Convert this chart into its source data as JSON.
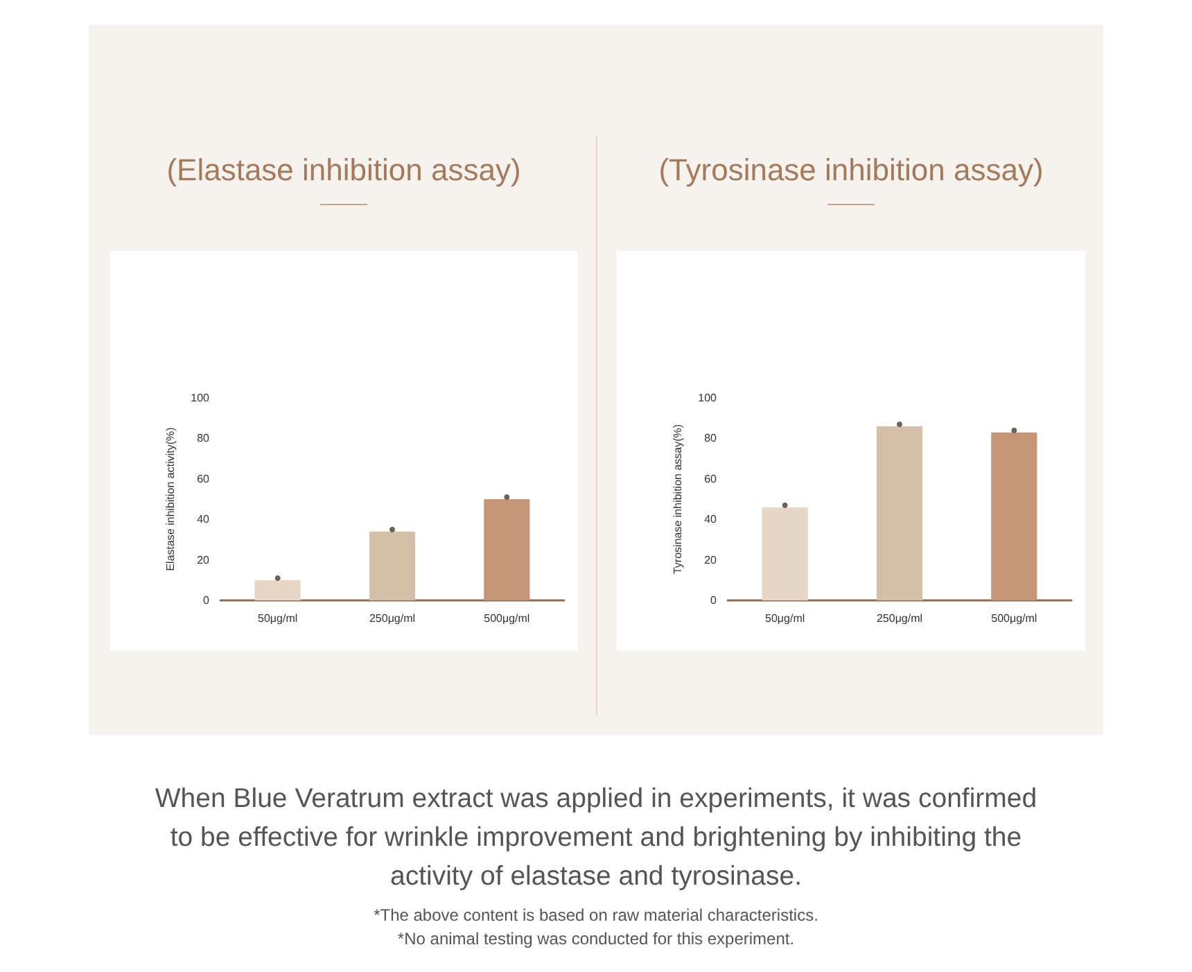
{
  "chart_data": [
    {
      "type": "bar",
      "title": "(Elastase inhibition assay)",
      "ylabel": "Elastase inhibition activity(%)",
      "categories": [
        "50μg/ml",
        "250μg/ml",
        "500μg/ml"
      ],
      "series": [
        {
          "values": [
            10,
            34,
            50
          ],
          "colors": [
            "#e6d7c7",
            "#d6bfa8",
            "#c59577"
          ]
        },
        {
          "type": "scatter",
          "x": [
            "50μg/ml",
            "250μg/ml",
            "500μg/ml"
          ],
          "values": [
            11,
            35,
            51
          ],
          "color": "#4a3a2a"
        }
      ],
      "marker": "circle",
      "ylim": [
        0,
        100
      ],
      "yticks": [
        0,
        20,
        40,
        60,
        80,
        100
      ],
      "grid": false,
      "annotations": [
        "When Blue Veratrum extract was applied in experiments, it was confirmed to be effective for wrinkle improvement and brightening by inhibiting the activity of elastase and tyrosinase.",
        "*The above content is based on raw material characteristics.",
        "*No animal testing was conducted for this experiment."
      ]
    },
    {
      "type": "bar",
      "title": "(Tyrosinase inhibition assay)",
      "ylabel": "Tyrosinase inhibition assay(%)",
      "categories": [
        "50μg/ml",
        "250μg/ml",
        "500μg/ml"
      ],
      "series": [
        {
          "values": [
            46,
            86,
            83
          ],
          "colors": [
            "#e6d7c7",
            "#d6bfa8",
            "#c59577"
          ]
        },
        {
          "type": "scatter",
          "x": [
            "50μg/ml",
            "250μg/ml",
            "500μg/ml"
          ],
          "values": [
            47,
            87,
            84
          ],
          "color": "#4a3a2a"
        }
      ],
      "marker": "circle",
      "ylim": [
        0,
        100
      ],
      "yticks": [
        0,
        20,
        40,
        60,
        80,
        100
      ],
      "grid": false
    }
  ]
}
